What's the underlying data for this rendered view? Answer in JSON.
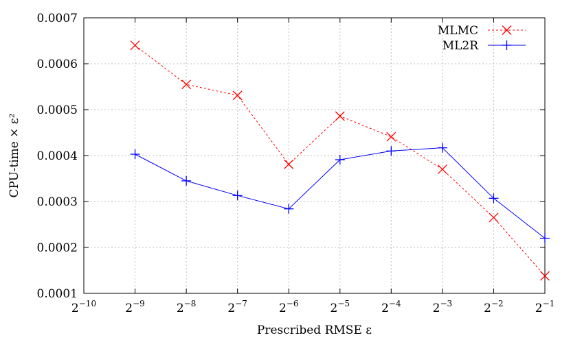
{
  "chart_data": {
    "type": "line",
    "title": "",
    "xlabel": "Prescribed RMSE ε",
    "ylabel": "CPU-time × ε²",
    "x_scale": "log2",
    "xlim_exponent": [
      -10,
      -1
    ],
    "x_tick_exponents": [
      -10,
      -9,
      -8,
      -7,
      -6,
      -5,
      -4,
      -3,
      -2,
      -1
    ],
    "x_tick_base": "2",
    "ylim": [
      0.0001,
      0.0007
    ],
    "y_ticks": [
      "0.0001",
      "0.0002",
      "0.0003",
      "0.0004",
      "0.0005",
      "0.0006",
      "0.0007"
    ],
    "grid": true,
    "legend_position": "top-right",
    "x_exponents": [
      -9,
      -8,
      -7,
      -6,
      -5,
      -4,
      -3,
      -2,
      -1
    ],
    "series": [
      {
        "name": "MLMC",
        "color": "#ff0000",
        "line_style": "dashed",
        "marker": "x",
        "values": [
          0.00064,
          0.000555,
          0.000531,
          0.000381,
          0.000486,
          0.000441,
          0.00037,
          0.000265,
          0.000138
        ]
      },
      {
        "name": "ML2R",
        "color": "#0000ff",
        "line_style": "solid",
        "marker": "+",
        "values": [
          0.000403,
          0.000345,
          0.000313,
          0.000284,
          0.000391,
          0.00041,
          0.000417,
          0.000307,
          0.00022
        ]
      }
    ]
  }
}
